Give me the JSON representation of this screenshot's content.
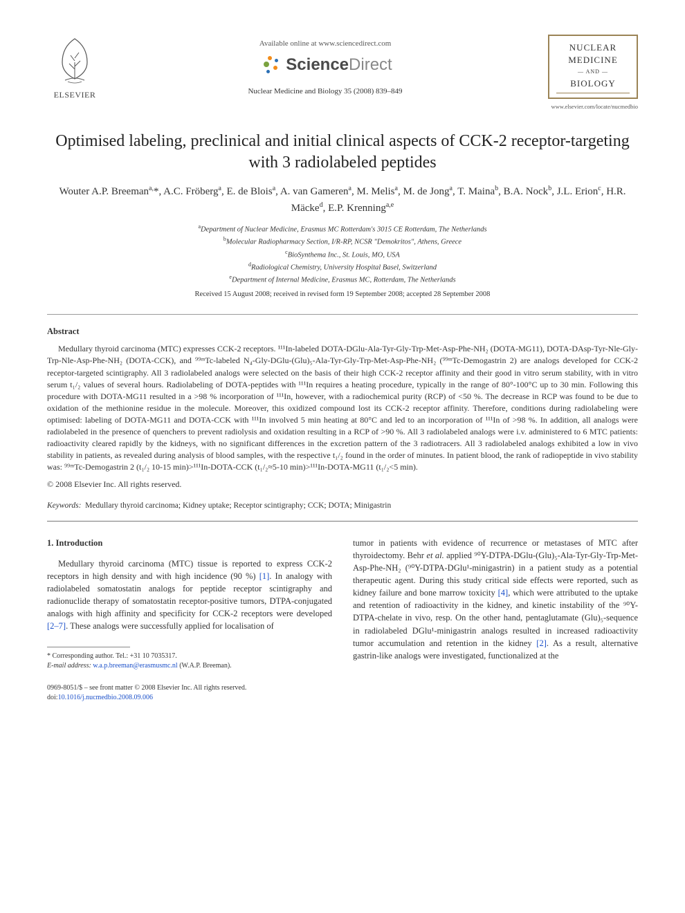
{
  "header": {
    "elsevier": "ELSEVIER",
    "available_line": "Available online at www.sciencedirect.com",
    "sd_brand_a": "Science",
    "sd_brand_b": "Direct",
    "journal_ref": "Nuclear Medicine and Biology 35 (2008) 839–849",
    "journal_box": {
      "l1": "NUCLEAR",
      "l2": "MEDICINE",
      "l3": "AND",
      "l4": "BIOLOGY",
      "url": "www.elsevier.com/locate/nucmedbio"
    }
  },
  "title": "Optimised labeling, preclinical and initial clinical aspects of CCK-2 receptor-targeting with 3 radiolabeled peptides",
  "authors_html": "Wouter A.P. Breeman<sup>a,</sup>*, A.C. Fröberg<sup>a</sup>, E. de Blois<sup>a</sup>, A. van Gameren<sup>a</sup>, M. Melis<sup>a</sup>, M. de Jong<sup>a</sup>, T. Maina<sup>b</sup>, B.A. Nock<sup>b</sup>, J.L. Erion<sup>c</sup>, H.R. Mäcke<sup>d</sup>, E.P. Krenning<sup>a,e</sup>",
  "affiliations": [
    {
      "sup": "a",
      "text": "Department of Nuclear Medicine, Erasmus MC Rotterdam's 3015 CE Rotterdam, The Netherlands"
    },
    {
      "sup": "b",
      "text": "Molecular Radiopharmacy Section, I/R-RP, NCSR \"Demokritos\", Athens, Greece"
    },
    {
      "sup": "c",
      "text": "BioSynthema Inc., St. Louis, MO, USA"
    },
    {
      "sup": "d",
      "text": "Radiological Chemistry, University Hospital Basel, Switzerland"
    },
    {
      "sup": "e",
      "text": "Department of Internal Medicine, Erasmus MC, Rotterdam, The Netherlands"
    }
  ],
  "dates": "Received 15 August 2008; received in revised form 19 September 2008; accepted 28 September 2008",
  "abstract_label": "Abstract",
  "abstract_body": "Medullary thyroid carcinoma (MTC) expresses CCK-2 receptors. ¹¹¹In-labeled DOTA-DGlu-Ala-Tyr-Gly-Trp-Met-Asp-Phe-NH₂ (DOTA-MG11), DOTA-DAsp-Tyr-Nle-Gly-Trp-Nle-Asp-Phe-NH₂ (DOTA-CCK), and ⁹⁹ᵐTc-labeled N₄-Gly-DGlu-(Glu)₅-Ala-Tyr-Gly-Trp-Met-Asp-Phe-NH₂ (⁹⁹ᵐTc-Demogastrin 2) are analogs developed for CCK-2 receptor-targeted scintigraphy. All 3 radiolabeled analogs were selected on the basis of their high CCK-2 receptor affinity and their good in vitro serum stability, with in vitro serum t₁/₂ values of several hours. Radiolabeling of DOTA-peptides with ¹¹¹In requires a heating procedure, typically in the range of 80°-100°C up to 30 min. Following this procedure with DOTA-MG11 resulted in a >98 % incorporation of ¹¹¹In, however, with a radiochemical purity (RCP) of <50 %. The decrease in RCP was found to be due to oxidation of the methionine residue in the molecule. Moreover, this oxidized compound lost its CCK-2 receptor affinity. Therefore, conditions during radiolabeling were optimised: labeling of DOTA-MG11 and DOTA-CCK with ¹¹¹In involved 5 min heating at 80°C and led to an incorporation of ¹¹¹In of >98 %. In addition, all analogs were radiolabeled in the presence of quenchers to prevent radiolysis and oxidation resulting in a RCP of >90 %. All 3 radiolabeled analogs were i.v. administered to 6 MTC patients: radioactivity cleared rapidly by the kidneys, with no significant differences in the excretion pattern of the 3 radiotracers. All 3 radiolabeled analogs exhibited a low in vivo stability in patients, as revealed during analysis of blood samples, with the respective t₁/₂ found in the order of minutes. In patient blood, the rank of radiopeptide in vivo stability was: ⁹⁹ᵐTc-Demogastrin 2 (t₁/₂ 10-15 min)>¹¹¹In-DOTA-CCK (t₁/₂≈5-10 min)>¹¹¹In-DOTA-MG11 (t₁/₂<5 min).",
  "copyright": "© 2008 Elsevier Inc. All rights reserved.",
  "keywords_label": "Keywords:",
  "keywords": "Medullary thyroid carcinoma; Kidney uptake; Receptor scintigraphy; CCK; DOTA; Minigastrin",
  "intro_heading": "1. Introduction",
  "intro_col1": "Medullary thyroid carcinoma (MTC) tissue is reported to express CCK-2 receptors in high density and with high incidence (90 %) [1]. In analogy with radiolabeled somatostatin analogs for peptide receptor scintigraphy and radionuclide therapy of somatostatin receptor-positive tumors, DTPA-conjugated analogs with high affinity and specificity for CCK-2 receptors were developed [2–7]. These analogs were successfully applied for localisation of",
  "intro_col2": "tumor in patients with evidence of recurrence or metastases of MTC after thyroidectomy. Behr et al. applied ⁹⁰Y-DTPA-DGlu-(Glu)₅-Ala-Tyr-Gly-Trp-Met-Asp-Phe-NH₂ (⁹⁰Y-DTPA-DGlu¹-minigastrin) in a patient study as a potential therapeutic agent. During this study critical side effects were reported, such as kidney failure and bone marrow toxicity [4], which were attributed to the uptake and retention of radioactivity in the kidney, and kinetic instability of the ⁹⁰Y-DTPA-chelate in vivo, resp. On the other hand, pentaglutamate (Glu)₅-sequence in radiolabeled DGlu¹-minigastrin analogs resulted in increased radioactivity tumor accumulation and retention in the kidney [2]. As a result, alternative gastrin-like analogs were investigated, functionalized at the",
  "footnote_corr": "* Corresponding author. Tel.: +31 10 7035317.",
  "footnote_email_label": "E-mail address:",
  "footnote_email": "w.a.p.breeman@erasmusmc.nl",
  "footnote_email_who": "(W.A.P. Breeman).",
  "footer_line": "0969-8051/$ – see front matter © 2008 Elsevier Inc. All rights reserved.",
  "doi_label": "doi:",
  "doi": "10.1016/j.nucmedbio.2008.09.006",
  "refs": {
    "r1": "[1]",
    "r27": "[2–7]",
    "r4": "[4]",
    "r2": "[2]"
  },
  "colors": {
    "link": "#1a4fc9",
    "border": "#9b8355",
    "text": "#333333",
    "sd_orange": "#f28c1a",
    "sd_blue": "#2a6fb5",
    "sd_green": "#7aa23f"
  }
}
